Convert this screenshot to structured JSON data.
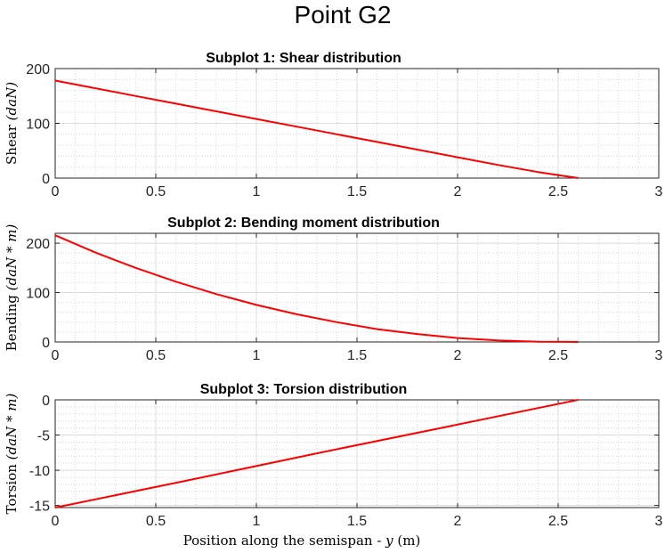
{
  "figure": {
    "title": "Point G2"
  },
  "chart_data": [
    {
      "type": "line",
      "title": "Subplot 1: Shear distribution",
      "ylabel": {
        "text": "Shear",
        "unit": "(daN)"
      },
      "xlabel": "",
      "xlim": [
        0,
        3
      ],
      "ylim": [
        0,
        200
      ],
      "xticks": [
        "0",
        "0.5",
        "1",
        "1.5",
        "2",
        "2.5",
        "3"
      ],
      "yticks": [
        "0",
        "100",
        "200"
      ],
      "grid": true,
      "minor_grid": true,
      "line_color": "#ff0000",
      "x": [
        0,
        0.2,
        0.4,
        0.6,
        0.8,
        1.0,
        1.2,
        1.4,
        1.6,
        1.8,
        2.0,
        2.2,
        2.4,
        2.6
      ],
      "values": [
        178,
        164,
        150,
        136,
        122,
        108,
        94,
        80,
        66,
        52,
        38,
        24,
        11,
        0
      ]
    },
    {
      "type": "line",
      "title": "Subplot 2: Bending moment distribution",
      "ylabel": {
        "text": "Bending",
        "unit": "(daN * m)"
      },
      "xlabel": "",
      "xlim": [
        0,
        3
      ],
      "ylim": [
        0,
        220
      ],
      "xticks": [
        "0",
        "0.5",
        "1",
        "1.5",
        "2",
        "2.5",
        "3"
      ],
      "yticks": [
        "0",
        "100",
        "200"
      ],
      "grid": true,
      "minor_grid": true,
      "line_color": "#ff0000",
      "x": [
        0,
        0.2,
        0.4,
        0.6,
        0.8,
        1.0,
        1.2,
        1.4,
        1.6,
        1.8,
        2.0,
        2.2,
        2.4,
        2.6
      ],
      "values": [
        216,
        181,
        150,
        122,
        97,
        75,
        56,
        40,
        26,
        16,
        8,
        3,
        0.5,
        0
      ]
    },
    {
      "type": "line",
      "title": "Subplot 3: Torsion distribution",
      "ylabel": {
        "text": "Torsion",
        "unit": "(daN * m)"
      },
      "xlabel": {
        "text": "Position along the semispan - ",
        "var": "y",
        "unit": " (m)"
      },
      "xlim": [
        0,
        3
      ],
      "ylim": [
        -15.3,
        0
      ],
      "xticks": [
        "0",
        "0.5",
        "1",
        "1.5",
        "2",
        "2.5",
        "3"
      ],
      "yticks": [
        "-15",
        "-10",
        "-5",
        "0"
      ],
      "grid": true,
      "minor_grid": true,
      "line_color": "#ff0000",
      "x": [
        0,
        0.65,
        1.3,
        1.95,
        2.6
      ],
      "values": [
        -15.3,
        -11.5,
        -7.6,
        -3.8,
        0
      ]
    }
  ]
}
